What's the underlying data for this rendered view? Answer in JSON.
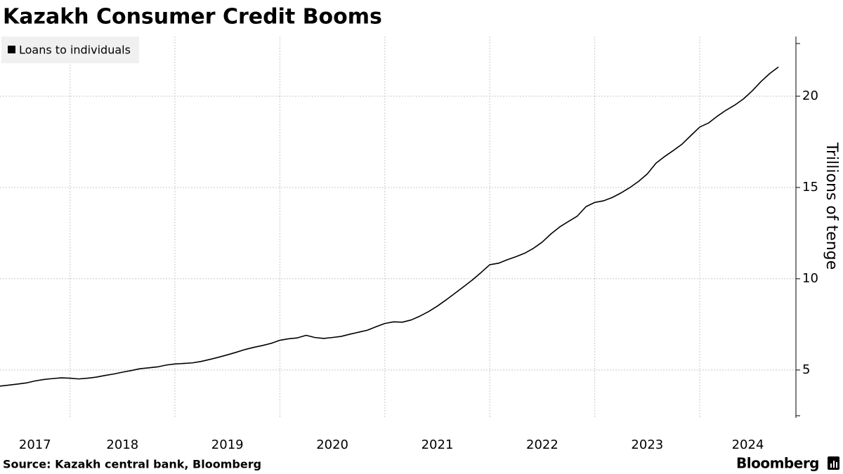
{
  "chart_data": {
    "type": "line",
    "title": "Kazakh Consumer Credit Booms",
    "source": "Source: Kazakh central bank, Bloomberg",
    "brand": "Bloomberg",
    "y_label": "Trillions of tenge",
    "x": [
      "2017-05",
      "2017-06",
      "2017-07",
      "2017-08",
      "2017-09",
      "2017-10",
      "2017-11",
      "2017-12",
      "2018-01",
      "2018-02",
      "2018-03",
      "2018-04",
      "2018-05",
      "2018-06",
      "2018-07",
      "2018-08",
      "2018-09",
      "2018-10",
      "2018-11",
      "2018-12",
      "2019-01",
      "2019-02",
      "2019-03",
      "2019-04",
      "2019-05",
      "2019-06",
      "2019-07",
      "2019-08",
      "2019-09",
      "2019-10",
      "2019-11",
      "2019-12",
      "2020-01",
      "2020-02",
      "2020-03",
      "2020-04",
      "2020-05",
      "2020-06",
      "2020-07",
      "2020-08",
      "2020-09",
      "2020-10",
      "2020-11",
      "2020-12",
      "2021-01",
      "2021-02",
      "2021-03",
      "2021-04",
      "2021-05",
      "2021-06",
      "2021-07",
      "2021-08",
      "2021-09",
      "2021-10",
      "2021-11",
      "2021-12",
      "2022-01",
      "2022-02",
      "2022-03",
      "2022-04",
      "2022-05",
      "2022-06",
      "2022-07",
      "2022-08",
      "2022-09",
      "2022-10",
      "2022-11",
      "2022-12",
      "2023-01",
      "2023-02",
      "2023-03",
      "2023-04",
      "2023-05",
      "2023-06",
      "2023-07",
      "2023-08",
      "2023-09",
      "2023-10",
      "2023-11",
      "2023-12",
      "2024-01",
      "2024-02",
      "2024-03",
      "2024-04",
      "2024-05",
      "2024-06",
      "2024-07",
      "2024-08",
      "2024-09",
      "2024-10"
    ],
    "series": [
      {
        "name": "Loans to individuals",
        "color": "#000000",
        "values": [
          4.12,
          4.17,
          4.23,
          4.29,
          4.4,
          4.48,
          4.53,
          4.57,
          4.55,
          4.51,
          4.55,
          4.61,
          4.7,
          4.78,
          4.88,
          4.97,
          5.07,
          5.12,
          5.17,
          5.27,
          5.33,
          5.36,
          5.39,
          5.47,
          5.58,
          5.7,
          5.83,
          5.97,
          6.12,
          6.24,
          6.34,
          6.46,
          6.63,
          6.71,
          6.76,
          6.9,
          6.78,
          6.73,
          6.78,
          6.84,
          6.96,
          7.07,
          7.18,
          7.37,
          7.55,
          7.64,
          7.62,
          7.74,
          7.95,
          8.2,
          8.5,
          8.84,
          9.2,
          9.56,
          9.93,
          10.34,
          10.77,
          10.85,
          11.04,
          11.21,
          11.4,
          11.67,
          12.01,
          12.46,
          12.84,
          13.14,
          13.43,
          13.95,
          14.18,
          14.27,
          14.45,
          14.7,
          14.99,
          15.33,
          15.74,
          16.33,
          16.7,
          17.03,
          17.38,
          17.85,
          18.31,
          18.53,
          18.9,
          19.23,
          19.51,
          19.85,
          20.29,
          20.8,
          21.24,
          21.6
        ]
      }
    ],
    "xlim": [
      "2017-05",
      "2024-12"
    ],
    "xticks": [
      2017,
      2018,
      2019,
      2020,
      2021,
      2022,
      2023,
      2024
    ],
    "ylim": [
      2.38,
      23.27
    ],
    "yticks": [
      5,
      10,
      15,
      20
    ],
    "y_axis_side": "right",
    "grid": true,
    "legend": "top-left"
  }
}
